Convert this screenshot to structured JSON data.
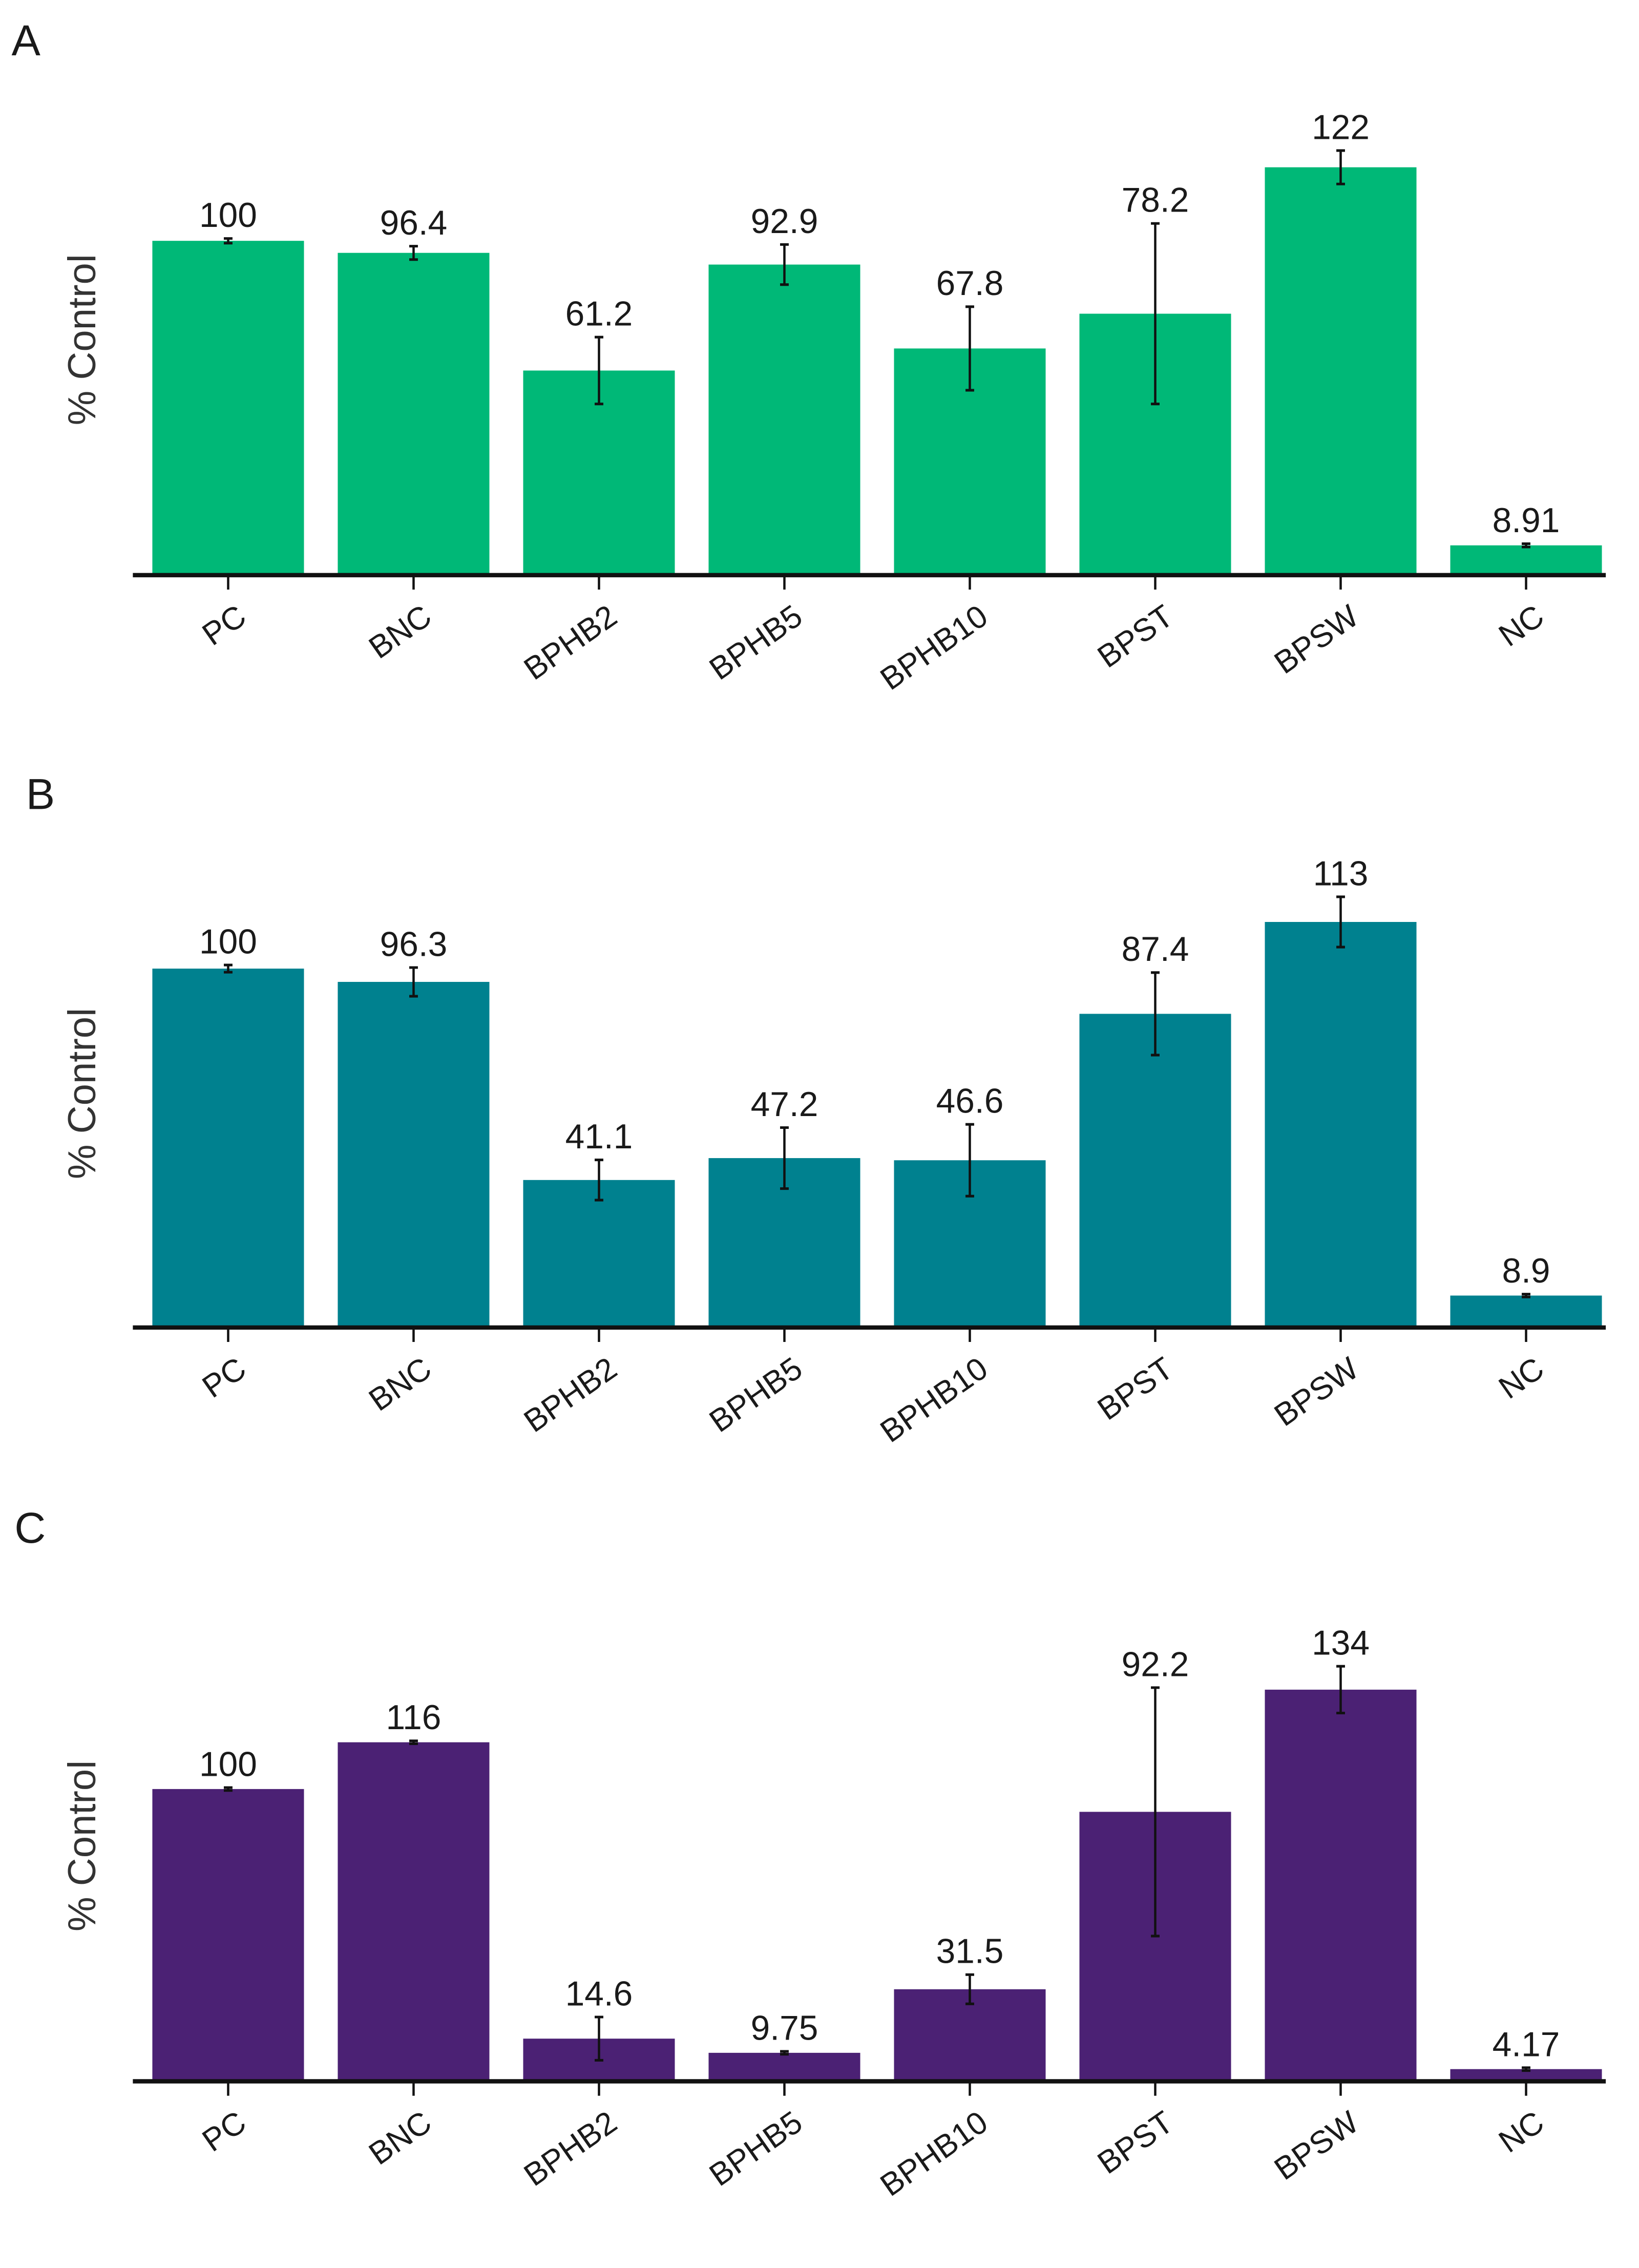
{
  "chart_data": [
    {
      "type": "bar",
      "panel": "A",
      "ylabel": "% Control",
      "xlabel": "",
      "ylim": [
        0,
        146
      ],
      "grid": false,
      "color": "#00b877",
      "categories": [
        "PC",
        "BNC",
        "BPHB2",
        "BPHB5",
        "BPHB10",
        "BPST",
        "BPSW",
        "NC"
      ],
      "values": [
        100,
        96.4,
        61.2,
        92.9,
        67.8,
        78.2,
        122,
        8.91
      ],
      "value_labels": [
        "100",
        "96.4",
        "61.2",
        "92.9",
        "67.8",
        "78.2",
        "122",
        "8.91"
      ],
      "errors": [
        0.7,
        2,
        10,
        6,
        12.5,
        27,
        5,
        0.5
      ]
    },
    {
      "type": "bar",
      "panel": "B",
      "ylabel": "% Control",
      "xlabel": "",
      "ylim": [
        0,
        136
      ],
      "grid": false,
      "color": "#00818f",
      "categories": [
        "PC",
        "BNC",
        "BPHB2",
        "BPHB5",
        "BPHB10",
        "BPST",
        "BPSW",
        "NC"
      ],
      "values": [
        100,
        96.3,
        41.1,
        47.2,
        46.6,
        87.4,
        113,
        8.9
      ],
      "value_labels": [
        "100",
        "96.3",
        "41.1",
        "47.2",
        "46.6",
        "87.4",
        "113",
        "8.9"
      ],
      "errors": [
        1,
        4,
        5.6,
        8.5,
        10,
        11.5,
        7,
        0.4
      ]
    },
    {
      "type": "bar",
      "panel": "C",
      "ylabel": "% Control",
      "xlabel": "",
      "ylim": [
        0,
        167
      ],
      "grid": false,
      "color": "#4b2174",
      "categories": [
        "PC",
        "BNC",
        "BPHB2",
        "BPHB5",
        "BPHB10",
        "BPST",
        "BPSW",
        "NC"
      ],
      "values": [
        100,
        116,
        14.6,
        9.75,
        31.5,
        92.2,
        134,
        4.17
      ],
      "value_labels": [
        "100",
        "116",
        "14.6",
        "9.75",
        "31.5",
        "92.2",
        "134",
        "4.17"
      ],
      "errors": [
        0.5,
        0.5,
        7.4,
        0.5,
        5,
        42.5,
        8,
        0.5
      ]
    }
  ]
}
